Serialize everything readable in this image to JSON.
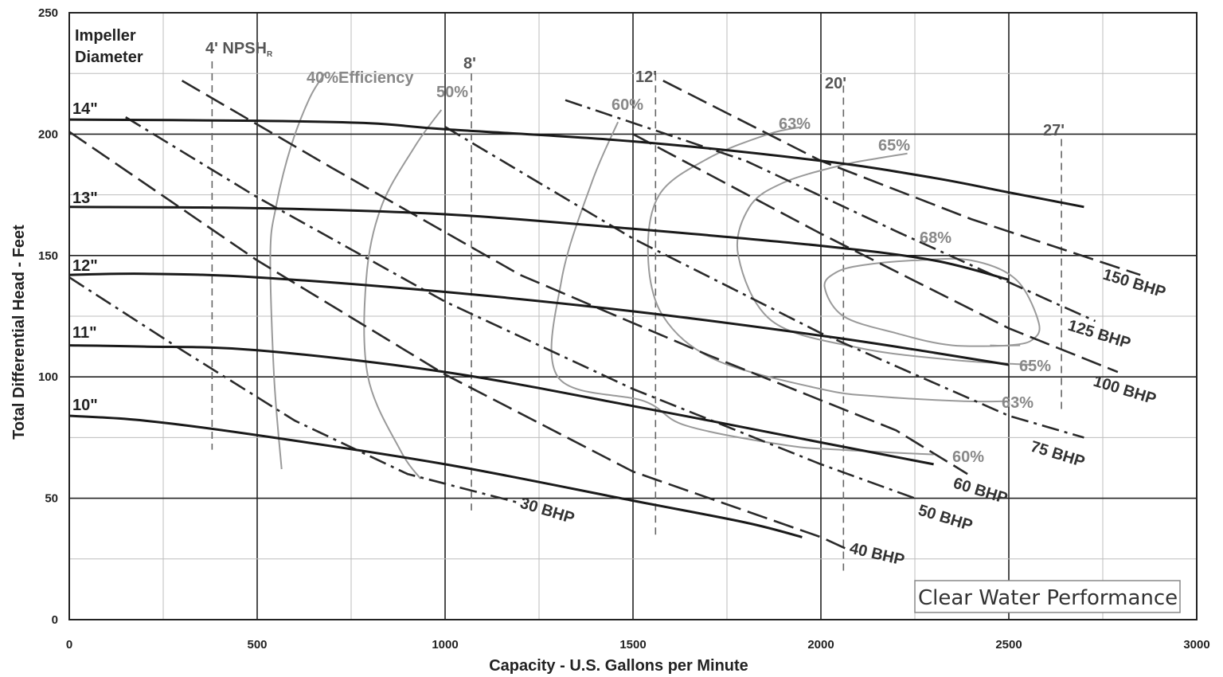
{
  "chart_data": {
    "type": "line",
    "title": "",
    "xlabel": "Capacity - U.S. Gallons per Minute",
    "ylabel": "Total Differential Head - Feet",
    "xlim": [
      0,
      3000
    ],
    "ylim": [
      0,
      250
    ],
    "x_ticks": [
      "0",
      "500",
      "1000",
      "1500",
      "2000",
      "2500",
      "3000"
    ],
    "y_ticks": [
      "0",
      "50",
      "100",
      "150",
      "200",
      "250"
    ],
    "grid": true,
    "legend_label": "Impeller Diameter",
    "annotation_box": "Clear Water Performance",
    "impeller_curves": [
      {
        "name": "14\"",
        "x": [
          0,
          500,
          800,
          1000,
          1500,
          2000,
          2300,
          2500,
          2700
        ],
        "y": [
          206,
          205.5,
          204.5,
          202,
          197,
          189,
          182,
          176,
          170
        ]
      },
      {
        "name": "13\"",
        "x": [
          0,
          500,
          1000,
          1500,
          2000,
          2300,
          2500
        ],
        "y": [
          170,
          169.5,
          167,
          161,
          154,
          148,
          140
        ]
      },
      {
        "name": "12\"",
        "x": [
          0,
          200,
          500,
          1000,
          1500,
          2000,
          2300,
          2500
        ],
        "y": [
          142,
          142.5,
          141,
          135,
          127,
          117,
          110,
          105
        ]
      },
      {
        "name": "11\"",
        "x": [
          0,
          200,
          500,
          1000,
          1500,
          2000,
          2300
        ],
        "y": [
          113,
          112.5,
          111,
          102,
          88,
          73,
          64
        ]
      },
      {
        "name": "10\"",
        "x": [
          0,
          200,
          500,
          1000,
          1500,
          1800,
          1950
        ],
        "y": [
          84,
          82,
          76,
          64,
          49,
          40,
          34
        ]
      }
    ],
    "bhp_lines": [
      {
        "name": "30 BHP",
        "x": [
          0,
          300,
          600,
          900,
          1200
        ],
        "y": [
          141,
          111,
          82,
          60,
          48
        ]
      },
      {
        "name": "40 BHP",
        "x": [
          0,
          500,
          1000,
          1500,
          2000,
          2070
        ],
        "y": [
          201,
          148,
          101,
          61,
          34,
          29
        ]
      },
      {
        "name": "50 BHP",
        "x": [
          150,
          500,
          1000,
          1500,
          2000,
          2250
        ],
        "y": [
          207,
          174,
          131,
          95,
          64,
          50
        ]
      },
      {
        "name": "60 BHP",
        "x": [
          300,
          700,
          1200,
          1700,
          2200,
          2390
        ],
        "y": [
          222,
          186,
          142,
          109,
          78,
          60
        ]
      },
      {
        "name": "75 BHP",
        "x": [
          1000,
          1500,
          2000,
          2500,
          2700
        ],
        "y": [
          203,
          157,
          118,
          84,
          75
        ]
      },
      {
        "name": "100 BHP",
        "x": [
          1500,
          2000,
          2500,
          2790
        ],
        "y": [
          200,
          159,
          120,
          102
        ]
      },
      {
        "name": "125 BHP",
        "x": [
          1320,
          1800,
          2200,
          2600,
          2730
        ],
        "y": [
          214,
          189,
          160,
          132,
          123
        ]
      },
      {
        "name": "150 BHP",
        "x": [
          1580,
          2000,
          2400,
          2850
        ],
        "y": [
          222,
          189,
          165,
          142
        ]
      }
    ],
    "efficiency_curves": [
      {
        "name": "40%Efficiency",
        "x": [
          565,
          545,
          535,
          550,
          590,
          640,
          680
        ],
        "y": [
          62,
          100,
          150,
          170,
          195,
          215,
          225
        ]
      },
      {
        "name": "50%",
        "x": [
          935,
          880,
          795,
          790,
          830,
          920,
          990
        ],
        "y": [
          58,
          70,
          100,
          140,
          170,
          195,
          210
        ]
      },
      {
        "name": "60%",
        "x": [
          2300,
          2050,
          1900,
          1640,
          1530,
          1300,
          1310,
          1390,
          1460
        ],
        "y": [
          68,
          70,
          72,
          80,
          90,
          100,
          140,
          180,
          205
        ]
      },
      {
        "name": "63%",
        "x": [
          2500,
          2380,
          2150,
          2000,
          1720,
          1580,
          1540,
          1570,
          1700,
          1860,
          1950
        ],
        "y": [
          90,
          90,
          92,
          95,
          107,
          125,
          150,
          175,
          190,
          200,
          203
        ]
      },
      {
        "name": "65%",
        "x": [
          2555,
          2350,
          2100,
          1870,
          1780,
          1810,
          1900,
          2050,
          2150,
          2230
        ],
        "y": [
          105,
          107,
          112,
          123,
          150,
          170,
          180,
          187,
          190,
          192
        ]
      },
      {
        "name": "68%",
        "x": [
          2530,
          2350,
          2200,
          2060,
          2010,
          2040,
          2110,
          2250,
          2400,
          2520,
          2580,
          2560,
          2500,
          2450
        ],
        "y": [
          113,
          113,
          118,
          125,
          137,
          143,
          146,
          148,
          148,
          140,
          122,
          115,
          113,
          113
        ]
      }
    ],
    "npsh_lines": [
      {
        "name": "4' NPSH",
        "x": 380,
        "y_range": [
          70,
          230
        ]
      },
      {
        "name": "8'",
        "x": 1070,
        "y_range": [
          45,
          225
        ]
      },
      {
        "name": "12'",
        "x": 1560,
        "y_range": [
          35,
          225
        ]
      },
      {
        "name": "20'",
        "x": 2060,
        "y_range": [
          20,
          220
        ]
      },
      {
        "name": "27'",
        "x": 2640,
        "y_range": [
          85,
          198
        ]
      }
    ]
  },
  "labels": {
    "impeller_title_1": "Impeller",
    "impeller_title_2": "Diameter",
    "npsh_4": "4' NPSH",
    "npsh_4_sub": "R",
    "npsh_8": "8'",
    "npsh_12": "12'",
    "npsh_20": "20'",
    "npsh_27": "27'",
    "imp_14": "14\"",
    "imp_13": "13\"",
    "imp_12": "12\"",
    "imp_11": "11\"",
    "imp_10": "10\"",
    "eff_40": "40%Efficiency",
    "eff_50": "50%",
    "eff_60_top": "60%",
    "eff_63_top": "63%",
    "eff_65_top": "65%",
    "eff_68": "68%",
    "eff_65_bot": "65%",
    "eff_63_bot": "63%",
    "eff_60_bot": "60%",
    "bhp_30": "30 BHP",
    "bhp_40": "40 BHP",
    "bhp_50": "50 BHP",
    "bhp_60": "60 BHP",
    "bhp_75": "75 BHP",
    "bhp_100": "100 BHP",
    "bhp_125": "125 BHP",
    "bhp_150": "150 BHP",
    "clear_water": "Clear Water Performance",
    "xlabel": "Capacity - U.S. Gallons per Minute",
    "ylabel": "Total Differential Head - Feet"
  },
  "colors": {
    "impeller": "#1a1a1a",
    "bhp": "#2a2a2a",
    "efficiency": "#9a9a9a",
    "npsh": "#666666",
    "grid_major": "#222222",
    "grid_minor": "#bdbdbd"
  }
}
